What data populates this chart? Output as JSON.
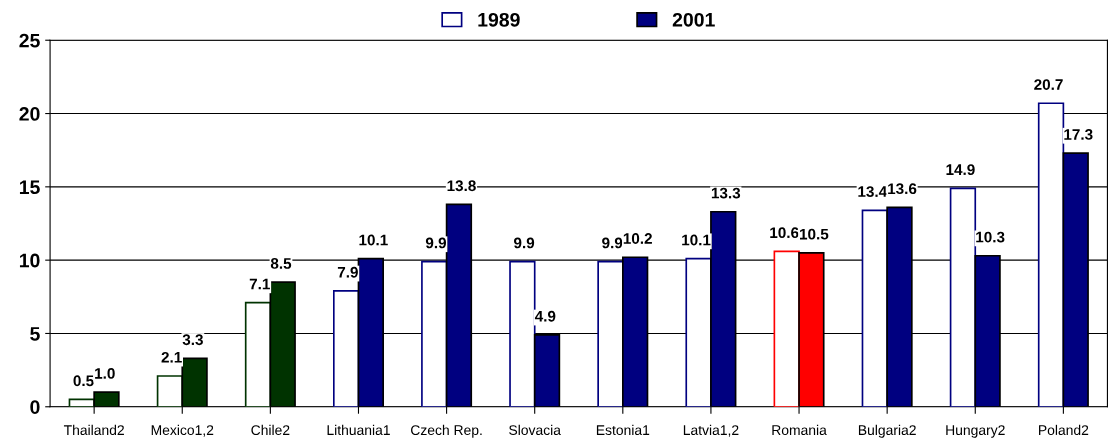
{
  "chart_data": {
    "type": "bar",
    "categories": [
      "Thailand2",
      "Mexico1,2",
      "Chile2",
      "Lithuania1",
      "Czech Rep.",
      "Slovacia",
      "Estonia1",
      "Latvia1,2",
      "Romania",
      "Bulgaria2",
      "Hungary2",
      "Poland2"
    ],
    "series": [
      {
        "name": "1989",
        "color": "#ffffff",
        "colors": [
          "#003300",
          "#003300",
          "#003300",
          "#000080",
          "#000080",
          "#000080",
          "#000080",
          "#000080",
          "#ff0000",
          "#000080",
          "#000080",
          "#000080"
        ],
        "values": [
          0.5,
          2.1,
          7.1,
          7.9,
          9.9,
          9.9,
          9.9,
          10.1,
          10.6,
          13.4,
          14.9,
          20.7
        ],
        "value_labels": [
          "0.5",
          "2.1",
          "7.1",
          "7.9",
          "9.9",
          "9.9",
          "9.9",
          "10.1",
          "10.6",
          "13.4",
          "14.9",
          "20.7"
        ]
      },
      {
        "name": "2001",
        "color": "#000080",
        "colors": [
          "#003300",
          "#003300",
          "#003300",
          "#000080",
          "#000080",
          "#000080",
          "#000080",
          "#000080",
          "#ff0000",
          "#000080",
          "#000080",
          "#000080"
        ],
        "values": [
          1.0,
          3.3,
          8.5,
          10.1,
          13.8,
          4.9,
          10.2,
          13.3,
          10.5,
          13.6,
          10.3,
          17.3
        ],
        "value_labels": [
          "1.0",
          "3.3",
          "8.5",
          "10.1",
          "13.8",
          "4.9",
          "10.2",
          "13.3",
          "10.5",
          "13.6",
          "10.3",
          "17.3"
        ]
      }
    ],
    "ylim": [
      0,
      25
    ],
    "yticks": [
      0,
      5,
      10,
      15,
      20,
      25
    ],
    "grid": "y",
    "legend": "top"
  }
}
